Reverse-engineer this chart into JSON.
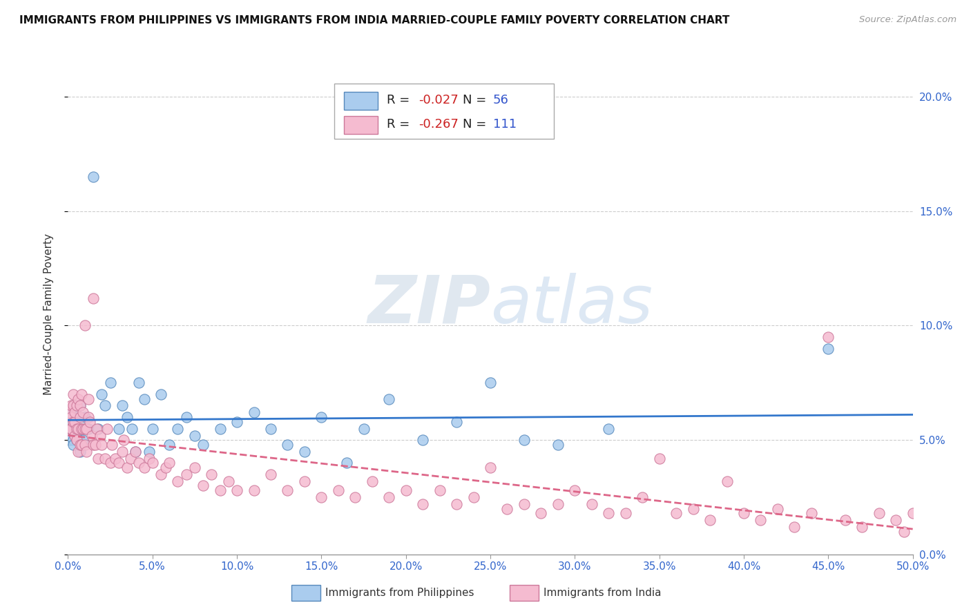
{
  "title": "IMMIGRANTS FROM PHILIPPINES VS IMMIGRANTS FROM INDIA MARRIED-COUPLE FAMILY POVERTY CORRELATION CHART",
  "source": "Source: ZipAtlas.com",
  "ylabel": "Married-Couple Family Poverty",
  "xlim": [
    0.0,
    0.5
  ],
  "ylim": [
    0.0,
    0.21
  ],
  "xticks": [
    0.0,
    0.05,
    0.1,
    0.15,
    0.2,
    0.25,
    0.3,
    0.35,
    0.4,
    0.45,
    0.5
  ],
  "yticks": [
    0.0,
    0.05,
    0.1,
    0.15,
    0.2
  ],
  "philippines_color": "#aaccee",
  "philippines_edge_color": "#5588bb",
  "india_color": "#f5bbd0",
  "india_edge_color": "#cc7799",
  "philippines_line_color": "#3377cc",
  "india_line_color": "#dd6688",
  "R_philippines": -0.027,
  "N_philippines": 56,
  "R_india": -0.267,
  "N_india": 111,
  "philippines_x": [
    0.001,
    0.001,
    0.002,
    0.002,
    0.003,
    0.003,
    0.003,
    0.004,
    0.004,
    0.005,
    0.005,
    0.006,
    0.006,
    0.007,
    0.007,
    0.008,
    0.009,
    0.01,
    0.012,
    0.015,
    0.018,
    0.02,
    0.022,
    0.025,
    0.03,
    0.032,
    0.035,
    0.038,
    0.04,
    0.042,
    0.045,
    0.048,
    0.05,
    0.055,
    0.06,
    0.065,
    0.07,
    0.075,
    0.08,
    0.09,
    0.1,
    0.11,
    0.12,
    0.13,
    0.14,
    0.15,
    0.165,
    0.175,
    0.19,
    0.21,
    0.23,
    0.25,
    0.27,
    0.29,
    0.32,
    0.45
  ],
  "philippines_y": [
    0.055,
    0.05,
    0.062,
    0.058,
    0.05,
    0.048,
    0.06,
    0.055,
    0.065,
    0.05,
    0.055,
    0.06,
    0.052,
    0.065,
    0.045,
    0.055,
    0.05,
    0.06,
    0.055,
    0.165,
    0.055,
    0.07,
    0.065,
    0.075,
    0.055,
    0.065,
    0.06,
    0.055,
    0.045,
    0.075,
    0.068,
    0.045,
    0.055,
    0.07,
    0.048,
    0.055,
    0.06,
    0.052,
    0.048,
    0.055,
    0.058,
    0.062,
    0.055,
    0.048,
    0.045,
    0.06,
    0.04,
    0.055,
    0.068,
    0.05,
    0.058,
    0.075,
    0.05,
    0.048,
    0.055,
    0.09
  ],
  "india_x": [
    0.001,
    0.001,
    0.002,
    0.002,
    0.002,
    0.003,
    0.003,
    0.003,
    0.004,
    0.004,
    0.004,
    0.005,
    0.005,
    0.005,
    0.006,
    0.006,
    0.006,
    0.007,
    0.007,
    0.007,
    0.008,
    0.008,
    0.008,
    0.009,
    0.009,
    0.01,
    0.01,
    0.01,
    0.011,
    0.011,
    0.012,
    0.012,
    0.013,
    0.014,
    0.015,
    0.015,
    0.016,
    0.017,
    0.018,
    0.019,
    0.02,
    0.022,
    0.023,
    0.025,
    0.026,
    0.028,
    0.03,
    0.032,
    0.033,
    0.035,
    0.037,
    0.04,
    0.042,
    0.045,
    0.048,
    0.05,
    0.055,
    0.058,
    0.06,
    0.065,
    0.07,
    0.075,
    0.08,
    0.085,
    0.09,
    0.095,
    0.1,
    0.11,
    0.12,
    0.13,
    0.14,
    0.15,
    0.16,
    0.17,
    0.18,
    0.19,
    0.2,
    0.21,
    0.22,
    0.23,
    0.24,
    0.25,
    0.26,
    0.27,
    0.28,
    0.29,
    0.3,
    0.31,
    0.32,
    0.33,
    0.34,
    0.35,
    0.36,
    0.37,
    0.38,
    0.39,
    0.4,
    0.41,
    0.42,
    0.43,
    0.44,
    0.45,
    0.46,
    0.47,
    0.48,
    0.49,
    0.495,
    0.5,
    0.505,
    0.51,
    0.515
  ],
  "india_y": [
    0.062,
    0.055,
    0.06,
    0.055,
    0.065,
    0.058,
    0.065,
    0.07,
    0.052,
    0.058,
    0.062,
    0.055,
    0.065,
    0.05,
    0.068,
    0.055,
    0.045,
    0.06,
    0.065,
    0.048,
    0.055,
    0.07,
    0.048,
    0.055,
    0.062,
    0.048,
    0.055,
    0.1,
    0.045,
    0.055,
    0.06,
    0.068,
    0.058,
    0.052,
    0.048,
    0.112,
    0.048,
    0.055,
    0.042,
    0.052,
    0.048,
    0.042,
    0.055,
    0.04,
    0.048,
    0.042,
    0.04,
    0.045,
    0.05,
    0.038,
    0.042,
    0.045,
    0.04,
    0.038,
    0.042,
    0.04,
    0.035,
    0.038,
    0.04,
    0.032,
    0.035,
    0.038,
    0.03,
    0.035,
    0.028,
    0.032,
    0.028,
    0.028,
    0.035,
    0.028,
    0.032,
    0.025,
    0.028,
    0.025,
    0.032,
    0.025,
    0.028,
    0.022,
    0.028,
    0.022,
    0.025,
    0.038,
    0.02,
    0.022,
    0.018,
    0.022,
    0.028,
    0.022,
    0.018,
    0.018,
    0.025,
    0.042,
    0.018,
    0.02,
    0.015,
    0.032,
    0.018,
    0.015,
    0.02,
    0.012,
    0.018,
    0.095,
    0.015,
    0.012,
    0.018,
    0.015,
    0.01,
    0.018,
    0.012,
    0.015,
    0.01
  ],
  "grid_color": "#cccccc",
  "watermark_color": "#e0e8f0",
  "title_fontsize": 11,
  "axis_label_fontsize": 11,
  "tick_fontsize": 11,
  "legend_fontsize": 13
}
